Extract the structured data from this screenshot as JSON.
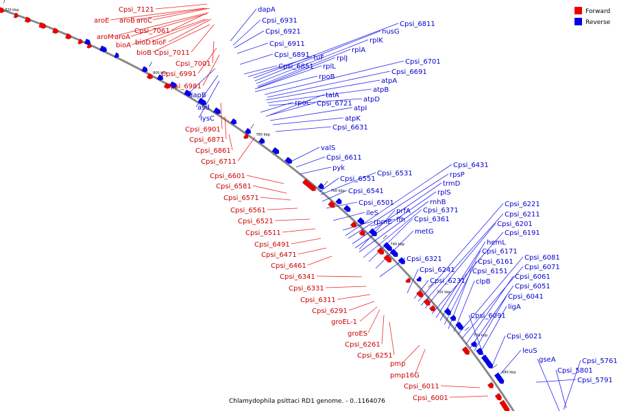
{
  "title": "Chlamydophila psittaci RD1 genome. - 0..1164076",
  "colors": {
    "forward": "#ee0000",
    "reverse": "#0000ee",
    "forward_line": "#ee2222",
    "reverse_line": "#2222ee",
    "backbone": "#888888"
  },
  "legend": {
    "forward": "Forward",
    "reverse": "Reverse"
  },
  "ticks": [
    "820 kbp",
    "800 kbp",
    "780 kbp",
    "760 kbp",
    "740 kbp",
    "720 kbp",
    "700 kbp",
    "680 kbp"
  ],
  "forward_labels": [
    "Cpsi_7121",
    "aroE",
    "aroB",
    "aroC",
    "aroM",
    "aroA",
    "Cpsi_7061",
    "bioA",
    "bioD",
    "bioF",
    "bioB",
    "Cpsi_7011",
    "Cpsi_7001",
    "Cpsi_6991",
    "Cpsi_6981",
    "Cpsi_6901",
    "Cpsi_6871",
    "Cpsi_6861",
    "Cpsi_6711",
    "Cpsi_6601",
    "Cpsi_6581",
    "Cpsi_6571",
    "Cpsi_6561",
    "Cpsi_6521",
    "Cpsi_6511",
    "Cpsi_6491",
    "Cpsi_6471",
    "Cpsi_6461",
    "Cpsi_6341",
    "Cpsi_6331",
    "Cpsi_6311",
    "Cpsi_6291",
    "groEL-1",
    "groES",
    "Cpsi_6261",
    "Cpsi_6251",
    "pmp",
    "pmp16G",
    "Cpsi_6011",
    "Cpsi_6001"
  ],
  "reverse_labels": [
    "dapA",
    "Cpsi_6931",
    "Cpsi_6921",
    "Cpsi_6911",
    "Cpsi_6891",
    "Cpsi_6851",
    "dapB",
    "asd",
    "lysC",
    "Cpsi_6811",
    "nusG",
    "rplK",
    "rplA",
    "rplJ",
    "tuF",
    "rplL",
    "rpoB",
    "Cpsi_6701",
    "Cpsi_6691",
    "atpA",
    "atpB",
    "atpD",
    "talA",
    "rpoC",
    "Cpsi_6721",
    "atpI",
    "atpK",
    "Cpsi_6631",
    "valS",
    "Cpsi_6611",
    "pyk",
    "Cpsi_6551",
    "Cpsi_6531",
    "Cpsi_6541",
    "Cpsi_6501",
    "ileS",
    "rpmE",
    "ffh",
    "Cpsi_6431",
    "rpsP",
    "trmD",
    "rplS",
    "rnhB",
    "prfA",
    "Cpsi_6371",
    "Cpsi_6361",
    "metG",
    "Cpsi_6321",
    "Cpsi_6241",
    "Cpsi_6231",
    "Cpsi_6221",
    "Cpsi_6211",
    "Cpsi_6201",
    "Cpsi_6191",
    "hemL",
    "Cpsi_6171",
    "Cpsi_6161",
    "Cpsi_6151",
    "clpB",
    "Cpsi_6081",
    "Cpsi_6071",
    "Cpsi_6061",
    "Cpsi_6051",
    "Cpsi_6041",
    "ligA",
    "Cpsi_6091",
    "Cpsi_6021",
    "leuS",
    "gseA",
    "Cpsi_5761",
    "Cpsi_5801",
    "Cpsi_5791"
  ]
}
